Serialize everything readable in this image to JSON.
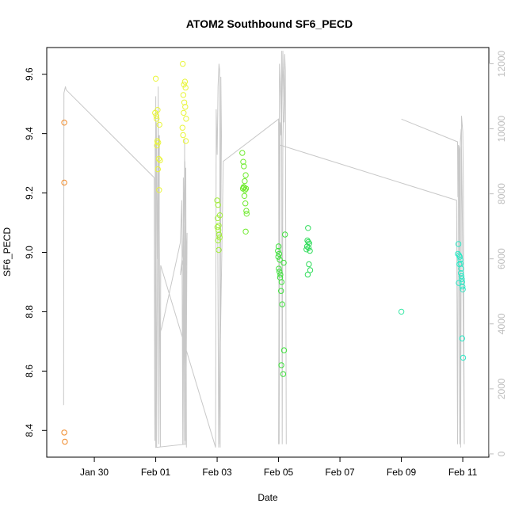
{
  "chart_data": {
    "type": "scatter",
    "title": "ATOM2 Southbound SF6_PECD",
    "xlabel": "Date",
    "ylabel": "SF6_PECD",
    "x_unit": "days since Jan 29 00:00 (tick positions: Jan 30=1 … Feb 11=13)",
    "xlim": [
      -0.55,
      13.85
    ],
    "ylim": [
      8.31,
      9.69
    ],
    "x_ticks": [
      {
        "x": 1,
        "label": "Jan 30"
      },
      {
        "x": 3,
        "label": "Feb 01"
      },
      {
        "x": 5,
        "label": "Feb 03"
      },
      {
        "x": 7,
        "label": "Feb 05"
      },
      {
        "x": 9,
        "label": "Feb 07"
      },
      {
        "x": 11,
        "label": "Feb 09"
      },
      {
        "x": 13,
        "label": "Feb 11"
      }
    ],
    "y_ticks": [
      8.4,
      8.6,
      8.8,
      9.0,
      9.2,
      9.4,
      9.6
    ],
    "y2lim": [
      -100,
      12500
    ],
    "y2_ticks": [
      0,
      2000,
      4000,
      6000,
      8000,
      10000,
      12000
    ],
    "y2_color": "#bdbdbd",
    "points": [
      {
        "x": 0.02,
        "y": 9.437,
        "color": "#f08a2a"
      },
      {
        "x": 0.02,
        "y": 9.235,
        "color": "#f08a2a"
      },
      {
        "x": 0.02,
        "y": 8.393,
        "color": "#f08a2a"
      },
      {
        "x": 0.04,
        "y": 8.362,
        "color": "#f08a2a"
      },
      {
        "x": 3.0,
        "y": 9.585,
        "color": "#e9f53a"
      },
      {
        "x": 2.98,
        "y": 9.47,
        "color": "#e9f53a"
      },
      {
        "x": 3.02,
        "y": 9.46,
        "color": "#e9f53a"
      },
      {
        "x": 3.06,
        "y": 9.48,
        "color": "#e9f53a"
      },
      {
        "x": 3.03,
        "y": 9.45,
        "color": "#e9f53a"
      },
      {
        "x": 3.12,
        "y": 9.43,
        "color": "#e9f53a"
      },
      {
        "x": 3.05,
        "y": 9.375,
        "color": "#e9f53a"
      },
      {
        "x": 3.08,
        "y": 9.37,
        "color": "#e9f53a"
      },
      {
        "x": 3.04,
        "y": 9.36,
        "color": "#e9f53a"
      },
      {
        "x": 3.1,
        "y": 9.315,
        "color": "#e9f53a"
      },
      {
        "x": 3.14,
        "y": 9.31,
        "color": "#e9f53a"
      },
      {
        "x": 3.07,
        "y": 9.28,
        "color": "#e9f53a"
      },
      {
        "x": 3.11,
        "y": 9.21,
        "color": "#e9f53a"
      },
      {
        "x": 3.88,
        "y": 9.635,
        "color": "#e9f53a"
      },
      {
        "x": 3.95,
        "y": 9.575,
        "color": "#e9f53a"
      },
      {
        "x": 3.92,
        "y": 9.565,
        "color": "#e9f53a"
      },
      {
        "x": 3.97,
        "y": 9.555,
        "color": "#e9f53a"
      },
      {
        "x": 3.9,
        "y": 9.53,
        "color": "#e9f53a"
      },
      {
        "x": 3.93,
        "y": 9.505,
        "color": "#e9f53a"
      },
      {
        "x": 3.96,
        "y": 9.49,
        "color": "#e9f53a"
      },
      {
        "x": 3.91,
        "y": 9.47,
        "color": "#e9f53a"
      },
      {
        "x": 3.99,
        "y": 9.45,
        "color": "#e9f53a"
      },
      {
        "x": 3.87,
        "y": 9.42,
        "color": "#e9f53a"
      },
      {
        "x": 3.89,
        "y": 9.395,
        "color": "#e9f53a"
      },
      {
        "x": 3.98,
        "y": 9.375,
        "color": "#e9f53a"
      },
      {
        "x": 5.0,
        "y": 9.175,
        "color": "#a2ef3a"
      },
      {
        "x": 5.03,
        "y": 9.16,
        "color": "#a2ef3a"
      },
      {
        "x": 5.09,
        "y": 9.125,
        "color": "#a2ef3a"
      },
      {
        "x": 5.02,
        "y": 9.115,
        "color": "#a2ef3a"
      },
      {
        "x": 5.05,
        "y": 9.09,
        "color": "#a2ef3a"
      },
      {
        "x": 5.01,
        "y": 9.085,
        "color": "#a2ef3a"
      },
      {
        "x": 5.04,
        "y": 9.075,
        "color": "#a2ef3a"
      },
      {
        "x": 5.06,
        "y": 9.06,
        "color": "#a2ef3a"
      },
      {
        "x": 5.08,
        "y": 9.05,
        "color": "#a2ef3a"
      },
      {
        "x": 5.03,
        "y": 9.04,
        "color": "#a2ef3a"
      },
      {
        "x": 5.05,
        "y": 9.008,
        "color": "#a2ef3a"
      },
      {
        "x": 5.82,
        "y": 9.335,
        "color": "#6fea2e"
      },
      {
        "x": 5.85,
        "y": 9.305,
        "color": "#6fea2e"
      },
      {
        "x": 5.87,
        "y": 9.29,
        "color": "#6fea2e"
      },
      {
        "x": 5.93,
        "y": 9.26,
        "color": "#6fea2e"
      },
      {
        "x": 5.9,
        "y": 9.24,
        "color": "#6fea2e"
      },
      {
        "x": 5.86,
        "y": 9.22,
        "color": "#6fea2e"
      },
      {
        "x": 5.84,
        "y": 9.215,
        "color": "#6fea2e"
      },
      {
        "x": 5.88,
        "y": 9.218,
        "color": "#6fea2e"
      },
      {
        "x": 5.91,
        "y": 9.21,
        "color": "#6fea2e"
      },
      {
        "x": 5.94,
        "y": 9.215,
        "color": "#6fea2e"
      },
      {
        "x": 5.89,
        "y": 9.19,
        "color": "#6fea2e"
      },
      {
        "x": 5.92,
        "y": 9.165,
        "color": "#6fea2e"
      },
      {
        "x": 5.95,
        "y": 9.14,
        "color": "#6fea2e"
      },
      {
        "x": 5.96,
        "y": 9.13,
        "color": "#6fea2e"
      },
      {
        "x": 5.93,
        "y": 9.07,
        "color": "#6fea2e"
      },
      {
        "x": 7.0,
        "y": 9.02,
        "color": "#3ee03c"
      },
      {
        "x": 6.98,
        "y": 9.005,
        "color": "#3ee03c"
      },
      {
        "x": 7.02,
        "y": 8.995,
        "color": "#3ee03c"
      },
      {
        "x": 6.99,
        "y": 8.985,
        "color": "#3ee03c"
      },
      {
        "x": 7.04,
        "y": 8.975,
        "color": "#3ee03c"
      },
      {
        "x": 7.21,
        "y": 9.06,
        "color": "#3ee03c"
      },
      {
        "x": 7.17,
        "y": 8.965,
        "color": "#3ee03c"
      },
      {
        "x": 7.01,
        "y": 8.945,
        "color": "#3ee03c"
      },
      {
        "x": 7.03,
        "y": 8.935,
        "color": "#3ee03c"
      },
      {
        "x": 7.06,
        "y": 8.925,
        "color": "#3ee03c"
      },
      {
        "x": 7.05,
        "y": 8.915,
        "color": "#3ee03c"
      },
      {
        "x": 7.1,
        "y": 8.9,
        "color": "#3ee03c"
      },
      {
        "x": 7.08,
        "y": 8.87,
        "color": "#3ee03c"
      },
      {
        "x": 7.12,
        "y": 8.825,
        "color": "#3ee03c"
      },
      {
        "x": 7.18,
        "y": 8.67,
        "color": "#3ee03c"
      },
      {
        "x": 7.09,
        "y": 8.62,
        "color": "#3ee03c"
      },
      {
        "x": 7.15,
        "y": 8.59,
        "color": "#3ee03c"
      },
      {
        "x": 7.96,
        "y": 9.082,
        "color": "#2fdc5a"
      },
      {
        "x": 7.94,
        "y": 9.04,
        "color": "#2fdc5a"
      },
      {
        "x": 7.97,
        "y": 9.035,
        "color": "#2fdc5a"
      },
      {
        "x": 8.0,
        "y": 9.03,
        "color": "#2fdc5a"
      },
      {
        "x": 7.93,
        "y": 9.02,
        "color": "#2fdc5a"
      },
      {
        "x": 7.98,
        "y": 9.015,
        "color": "#2fdc5a"
      },
      {
        "x": 7.91,
        "y": 9.01,
        "color": "#2fdc5a"
      },
      {
        "x": 8.02,
        "y": 9.005,
        "color": "#2fdc5a"
      },
      {
        "x": 7.99,
        "y": 8.96,
        "color": "#2fdc5a"
      },
      {
        "x": 8.03,
        "y": 8.94,
        "color": "#2fdc5a"
      },
      {
        "x": 7.95,
        "y": 8.925,
        "color": "#2fdc5a"
      },
      {
        "x": 11.0,
        "y": 8.8,
        "color": "#3de8a8"
      },
      {
        "x": 12.86,
        "y": 9.028,
        "color": "#2ee8c6"
      },
      {
        "x": 12.84,
        "y": 8.995,
        "color": "#2ee8c6"
      },
      {
        "x": 12.88,
        "y": 8.99,
        "color": "#2ee8c6"
      },
      {
        "x": 12.9,
        "y": 8.985,
        "color": "#2ee8c6"
      },
      {
        "x": 12.92,
        "y": 8.975,
        "color": "#2ee8c6"
      },
      {
        "x": 12.93,
        "y": 8.962,
        "color": "#2ee8c6"
      },
      {
        "x": 12.89,
        "y": 8.96,
        "color": "#2ee8c6"
      },
      {
        "x": 12.95,
        "y": 8.945,
        "color": "#2ee8c6"
      },
      {
        "x": 12.94,
        "y": 8.93,
        "color": "#2ee8c6"
      },
      {
        "x": 12.96,
        "y": 8.92,
        "color": "#2ee8c6"
      },
      {
        "x": 12.97,
        "y": 8.91,
        "color": "#2ee8c6"
      },
      {
        "x": 12.98,
        "y": 8.9,
        "color": "#2ee8c6"
      },
      {
        "x": 12.87,
        "y": 8.897,
        "color": "#2ee8c6"
      },
      {
        "x": 12.99,
        "y": 8.885,
        "color": "#2ee8c6"
      },
      {
        "x": 13.0,
        "y": 8.875,
        "color": "#2ee8c6"
      },
      {
        "x": 12.98,
        "y": 8.71,
        "color": "#2ee8c6"
      },
      {
        "x": 13.01,
        "y": 8.645,
        "color": "#2ee8c6"
      }
    ],
    "altitude_series": {
      "name": "",
      "color": "#c8c8c8",
      "axis": "right",
      "x": [
        0.0,
        0.01,
        0.06,
        0.08,
        2.95,
        2.97,
        3.0,
        3.03,
        3.08,
        3.1,
        3.12,
        3.1,
        3.2,
        3.8,
        3.85,
        3.88,
        3.9,
        3.92,
        3.94,
        3.96,
        3.98,
        4.0,
        3.9,
        3.8,
        3.88,
        3.95,
        4.0,
        4.02,
        3.98,
        3.0,
        2.98,
        3.02,
        3.05,
        3.1,
        3.15,
        3.16,
        4.95,
        4.97,
        5.0,
        5.03,
        5.06,
        5.08,
        5.1,
        5.12,
        5.14,
        5.06,
        5.02,
        5.05,
        5.2,
        7.0,
        7.02,
        7.05,
        7.08,
        7.1,
        7.12,
        7.14,
        7.2,
        7.22,
        7.25,
        7.22,
        7.18,
        7.14,
        7.1,
        7.07,
        7.03,
        7.0,
        7.05,
        12.8,
        12.83,
        12.86,
        12.9,
        12.93,
        12.96,
        13.0,
        13.02,
        13.05,
        12.98,
        12.95,
        12.92,
        12.9,
        12.88,
        12.86,
        12.84,
        12.83,
        11.0
      ],
      "y": [
        1500,
        11100,
        11300,
        11200,
        8500,
        400,
        11000,
        200,
        11300,
        300,
        9800,
        3600,
        3900,
        6500,
        7800,
        300,
        8500,
        300,
        9700,
        400,
        8800,
        200,
        6000,
        5500,
        6200,
        9000,
        5800,
        6800,
        300,
        200,
        9500,
        10200,
        6000,
        9800,
        200,
        5800,
        200,
        10600,
        9200,
        11300,
        12000,
        11800,
        200,
        11600,
        9800,
        300,
        6800,
        200,
        9000,
        10300,
        300,
        10200,
        9800,
        12400,
        300,
        9600,
        12300,
        11800,
        300,
        11800,
        10200,
        12400,
        9900,
        11000,
        12000,
        300,
        9500,
        7800,
        300,
        9500,
        9400,
        200,
        10400,
        9900,
        8400,
        300,
        7900,
        10000,
        9600,
        300,
        9400,
        9000,
        7900,
        9600,
        10300
      ]
    }
  }
}
